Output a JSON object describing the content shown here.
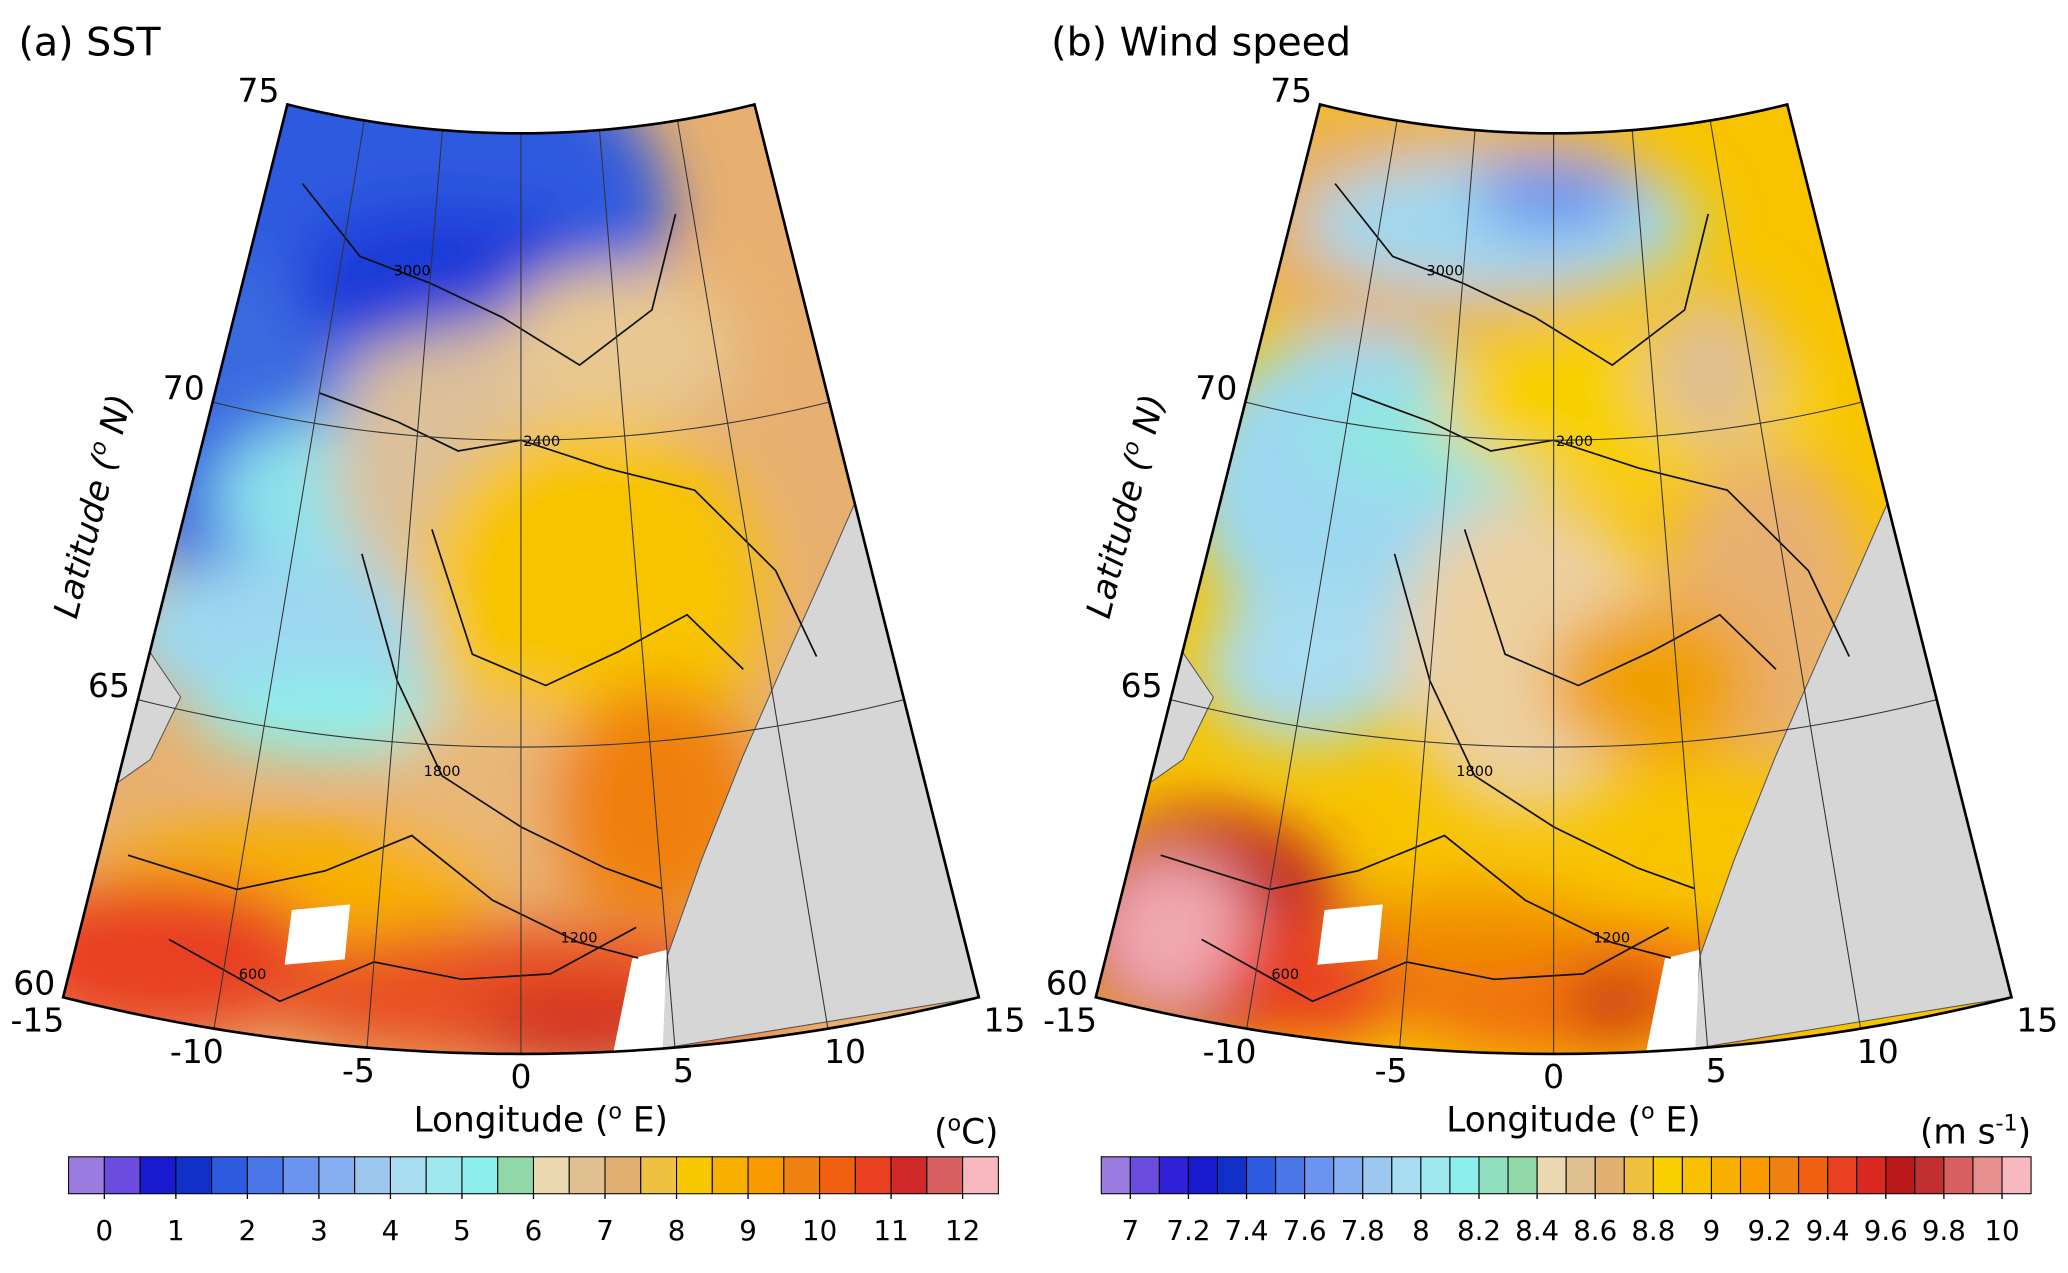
{
  "panels": [
    {
      "title": "(a) SST",
      "y_label": {
        "before": "Latitude (",
        "sup": "o",
        "after": " N)"
      },
      "x_label": {
        "before": "Longitude (",
        "sup": "o",
        "after": " E)"
      },
      "lat_ticks": [
        60,
        65,
        70,
        75
      ],
      "lon_ticks": [
        -15,
        -10,
        -5,
        0,
        5,
        10,
        15
      ],
      "contour_labels": [
        3000,
        2400,
        1800,
        1200,
        600
      ],
      "colorbar": {
        "unit": {
          "before": "(",
          "sup": "o",
          "after": "C)"
        },
        "lim": [
          -0.5,
          12.5
        ],
        "ticks": [
          0,
          1,
          2,
          3,
          4,
          5,
          6,
          7,
          8,
          9,
          10,
          11,
          12
        ],
        "colors": [
          "#9a7be0",
          "#6a4de0",
          "#1a1ad0",
          "#1030c8",
          "#2e5ae0",
          "#4a78e8",
          "#6a94ee",
          "#86aef2",
          "#9cc8f0",
          "#a8dcf0",
          "#a0e8f0",
          "#8ef0ec",
          "#90d8a8",
          "#ecd8b0",
          "#e0c090",
          "#e0b070",
          "#f0c040",
          "#f8c800",
          "#f8b000",
          "#f89a00",
          "#f08010",
          "#f06010",
          "#e84020",
          "#d02828",
          "#d86060",
          "#f8b8c0"
        ]
      }
    },
    {
      "title": "(b) Wind speed",
      "y_label": {
        "before": "Latitude (",
        "sup": "o",
        "after": " N)"
      },
      "x_label": {
        "before": "Longitude (",
        "sup": "o",
        "after": " E)"
      },
      "lat_ticks": [
        60,
        65,
        70,
        75
      ],
      "lon_ticks": [
        -15,
        -10,
        -5,
        0,
        5,
        10,
        15
      ],
      "contour_labels": [
        3000,
        2400,
        1800,
        1200,
        600
      ],
      "colorbar": {
        "unit": {
          "before": "(m s",
          "sup": "-1",
          "after": ")"
        },
        "lim": [
          6.9,
          10.1
        ],
        "ticks": [
          7,
          7.2,
          7.4,
          7.6,
          7.8,
          8,
          8.2,
          8.4,
          8.6,
          8.8,
          9,
          9.2,
          9.4,
          9.6,
          9.8,
          10
        ],
        "colors": [
          "#9a7be0",
          "#6a4de0",
          "#3020d8",
          "#1a1ad0",
          "#1030c8",
          "#2e5ae0",
          "#4a78e8",
          "#6a94ee",
          "#86aef2",
          "#9cc8f0",
          "#a8dcf0",
          "#a0e8f0",
          "#8ef0ec",
          "#90e0c0",
          "#90d8a8",
          "#ecd8b0",
          "#e0c090",
          "#e0b070",
          "#f0c040",
          "#f8d000",
          "#f8c000",
          "#f8b000",
          "#f89a00",
          "#f08010",
          "#f06010",
          "#e84020",
          "#d82820",
          "#b81818",
          "#c03030",
          "#d86060",
          "#e89090",
          "#f8b8c0"
        ]
      }
    }
  ]
}
